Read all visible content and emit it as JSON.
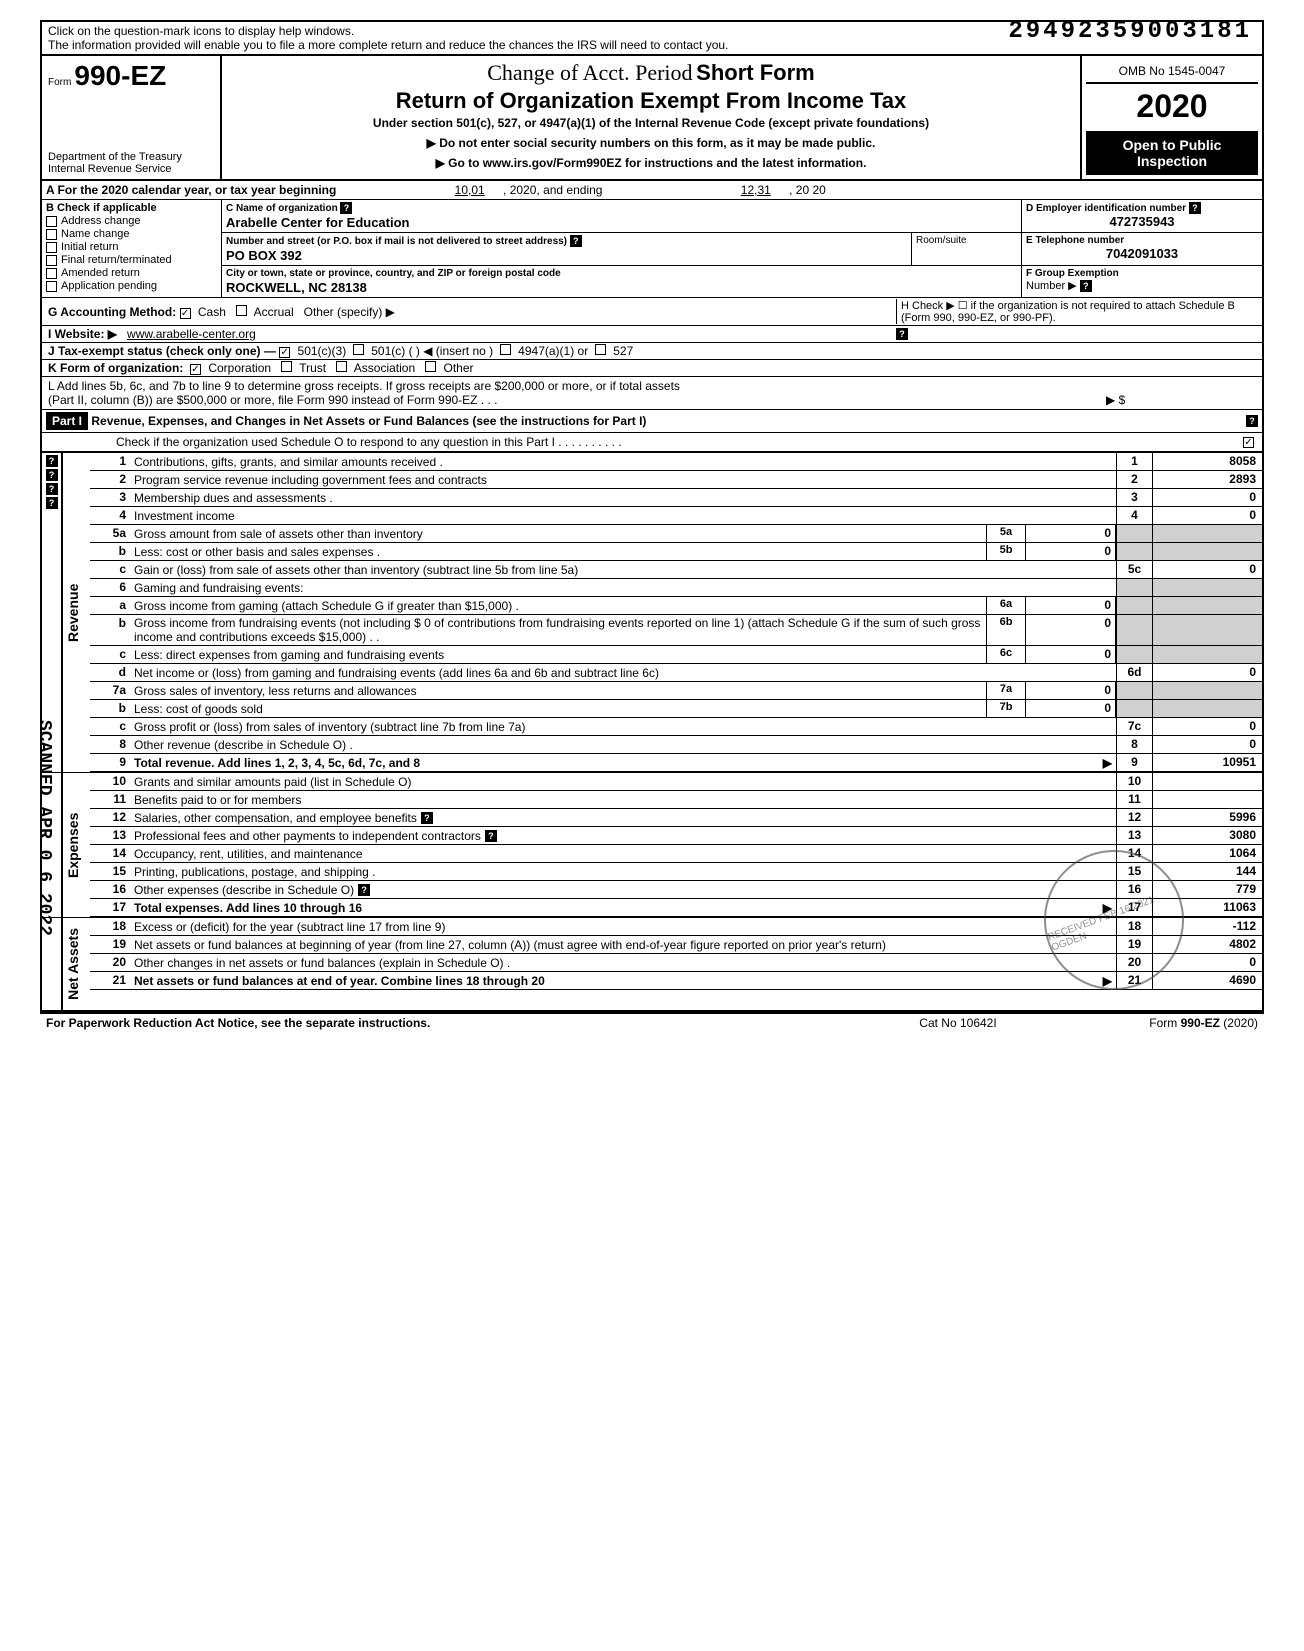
{
  "top": {
    "notice1": "Click on the question-mark icons to display help windows.",
    "notice2": "The information provided will enable you to file a more complete return and reduce the chances the IRS will need to contact you.",
    "docnum": "29492359003181"
  },
  "header": {
    "form_prefix": "Form",
    "form_number": "990-EZ",
    "dept": "Department of the Treasury",
    "irs": "Internal Revenue Service",
    "handwritten": "Change of Acct. Period",
    "short_form": "Short Form",
    "main_title": "Return of Organization Exempt From Income Tax",
    "sub_title": "Under section 501(c), 527, or 4947(a)(1) of the Internal Revenue Code (except private foundations)",
    "instr1": "▶ Do not enter social security numbers on this form, as it may be made public.",
    "instr2": "▶ Go to www.irs.gov/Form990EZ for instructions and the latest information.",
    "omb": "OMB No 1545-0047",
    "year": "2020",
    "open1": "Open to Public",
    "open2": "Inspection"
  },
  "rowA": {
    "label": "A For the 2020 calendar year, or tax year beginning",
    "begin": "10,01",
    "mid": ", 2020, and ending",
    "end": "12,31",
    "tail": ", 20   20"
  },
  "B": {
    "label": "B Check if applicable",
    "addr_change": "Address change",
    "name_change": "Name change",
    "initial": "Initial return",
    "final": "Final return/terminated",
    "amended": "Amended return",
    "pending": "Application pending"
  },
  "C": {
    "name_label": "C  Name of organization",
    "name": "Arabelle Center for Education",
    "street_label": "Number and street (or P.O. box if mail is not delivered to street address)",
    "room_label": "Room/suite",
    "street": "PO BOX 392",
    "city_label": "City or town, state or province, country, and ZIP or foreign postal code",
    "city": "ROCKWELL, NC 28138"
  },
  "D": {
    "label": "D Employer identification number",
    "value": "472735943"
  },
  "E": {
    "label": "E Telephone number",
    "value": "7042091033"
  },
  "F": {
    "label": "F Group Exemption",
    "label2": "Number ▶"
  },
  "G": {
    "label": "G Accounting Method:",
    "cash": "Cash",
    "accrual": "Accrual",
    "other": "Other (specify) ▶"
  },
  "H": {
    "text": "H Check ▶ ☐ if the organization is not required to attach Schedule B (Form 990, 990-EZ, or 990-PF)."
  },
  "I": {
    "label": "I  Website: ▶",
    "value": "www.arabelle-center.org"
  },
  "J": {
    "label": "J Tax-exempt status (check only one) —",
    "c3": "501(c)(3)",
    "c": "501(c) (          ) ◀ (insert no )",
    "a1": "4947(a)(1) or",
    "527": "527"
  },
  "K": {
    "label": "K Form of organization:",
    "corp": "Corporation",
    "trust": "Trust",
    "assoc": "Association",
    "other": "Other"
  },
  "L": {
    "line1": "L Add lines 5b, 6c, and 7b to line 9 to determine gross receipts. If gross receipts are $200,000 or more, or if total assets",
    "line2": "(Part II, column (B)) are $500,000 or more, file Form 990 instead of Form 990-EZ .   .   .",
    "arrow": "▶   $"
  },
  "part1": {
    "label": "Part I",
    "title": "Revenue, Expenses, and Changes in Net Assets or Fund Balances (see the instructions for Part I)",
    "check": "Check if the organization used Schedule O to respond to any question in this Part I . . . . . . . . . .",
    "checked": "✓"
  },
  "sections": {
    "revenue": "Revenue",
    "expenses": "Expenses",
    "netassets": "Net Assets"
  },
  "lines": {
    "1": {
      "n": "1",
      "d": "Contributions, gifts, grants, and similar amounts received .",
      "box": "1",
      "val": "8058"
    },
    "2": {
      "n": "2",
      "d": "Program service revenue including government fees and contracts",
      "box": "2",
      "val": "2893"
    },
    "3": {
      "n": "3",
      "d": "Membership dues and assessments .",
      "box": "3",
      "val": "0"
    },
    "4": {
      "n": "4",
      "d": "Investment income",
      "box": "4",
      "val": "0"
    },
    "5a": {
      "n": "5a",
      "d": "Gross amount from sale of assets other than inventory",
      "sbox": "5a",
      "sval": "0"
    },
    "5b": {
      "n": "b",
      "d": "Less: cost or other basis and sales expenses .",
      "sbox": "5b",
      "sval": "0"
    },
    "5c": {
      "n": "c",
      "d": "Gain or (loss) from sale of assets other than inventory (subtract line 5b from line 5a)",
      "box": "5c",
      "val": "0"
    },
    "6": {
      "n": "6",
      "d": "Gaming and fundraising events:"
    },
    "6a": {
      "n": "a",
      "d": "Gross income from gaming (attach Schedule G if greater than $15,000) .",
      "sbox": "6a",
      "sval": "0"
    },
    "6b": {
      "n": "b",
      "d": "Gross income from fundraising events (not including  $                    0  of contributions from fundraising events reported on line 1) (attach Schedule G if the sum of such gross income and contributions exceeds $15,000) . .",
      "sbox": "6b",
      "sval": "0"
    },
    "6c": {
      "n": "c",
      "d": "Less: direct expenses from gaming and fundraising events",
      "sbox": "6c",
      "sval": "0"
    },
    "6d": {
      "n": "d",
      "d": "Net income or (loss) from gaming and fundraising events (add lines 6a and 6b and subtract line 6c)",
      "box": "6d",
      "val": "0"
    },
    "7a": {
      "n": "7a",
      "d": "Gross sales of inventory, less returns and allowances",
      "sbox": "7a",
      "sval": "0"
    },
    "7b": {
      "n": "b",
      "d": "Less: cost of goods sold",
      "sbox": "7b",
      "sval": "0"
    },
    "7c": {
      "n": "c",
      "d": "Gross profit or (loss) from sales of inventory (subtract line 7b from line 7a)",
      "box": "7c",
      "val": "0"
    },
    "8": {
      "n": "8",
      "d": "Other revenue (describe in Schedule O) .",
      "box": "8",
      "val": "0"
    },
    "9": {
      "n": "9",
      "d": "Total revenue. Add lines 1, 2, 3, 4, 5c, 6d, 7c, and 8",
      "box": "9",
      "val": "10951",
      "arrow": "▶"
    },
    "10": {
      "n": "10",
      "d": "Grants and similar amounts paid (list in Schedule O)",
      "box": "10",
      "val": ""
    },
    "11": {
      "n": "11",
      "d": "Benefits paid to or for members",
      "box": "11",
      "val": ""
    },
    "12": {
      "n": "12",
      "d": "Salaries, other compensation, and employee benefits",
      "box": "12",
      "val": "5996"
    },
    "13": {
      "n": "13",
      "d": "Professional fees and other payments to independent contractors",
      "box": "13",
      "val": "3080"
    },
    "14": {
      "n": "14",
      "d": "Occupancy, rent, utilities, and maintenance",
      "box": "14",
      "val": "1064"
    },
    "15": {
      "n": "15",
      "d": "Printing, publications, postage, and shipping .",
      "box": "15",
      "val": "144"
    },
    "16": {
      "n": "16",
      "d": "Other expenses (describe in Schedule O)",
      "box": "16",
      "val": "779"
    },
    "17": {
      "n": "17",
      "d": "Total expenses. Add lines 10 through 16",
      "box": "17",
      "val": "11063",
      "arrow": "▶"
    },
    "18": {
      "n": "18",
      "d": "Excess or (deficit) for the year (subtract line 17 from line 9)",
      "box": "18",
      "val": "-112"
    },
    "19": {
      "n": "19",
      "d": "Net assets or fund balances at beginning of year (from line 27, column (A)) (must agree with end-of-year figure reported on prior year's return)",
      "box": "19",
      "val": "4802"
    },
    "20": {
      "n": "20",
      "d": "Other changes in net assets or fund balances (explain in Schedule O) .",
      "box": "20",
      "val": "0"
    },
    "21": {
      "n": "21",
      "d": "Net assets or fund balances at end of year. Combine lines 18 through 20",
      "box": "21",
      "val": "4690",
      "arrow": "▶"
    }
  },
  "footer": {
    "left": "For Paperwork Reduction Act Notice, see the separate instructions.",
    "center": "Cat No  10642I",
    "right": "Form 990-EZ (2020)"
  },
  "stamps": {
    "scanned": "SCANNED APR 0 6 2022",
    "received": "RECEIVED FEB 16 2021 OGDEN"
  }
}
